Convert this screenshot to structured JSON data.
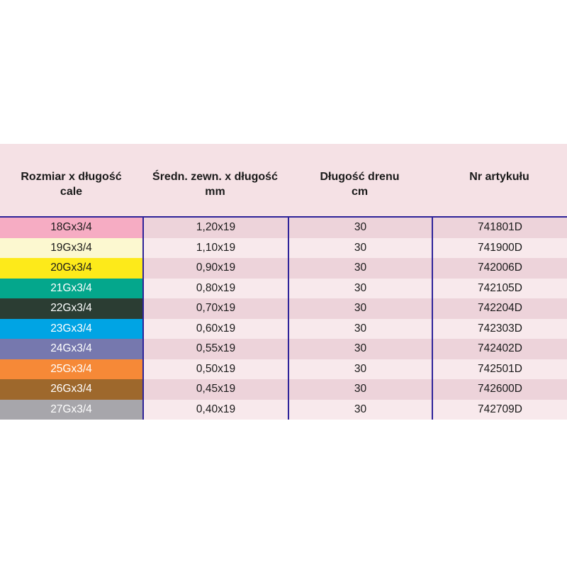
{
  "colors": {
    "header_bg": "#F5E1E5",
    "border": "#2E2399",
    "row_bg_odd": "#EDD3DA",
    "row_bg_even": "#F8E9EC"
  },
  "table": {
    "headers": [
      {
        "line1": "Rozmiar x długość",
        "line2": "cale"
      },
      {
        "line1": "Średn. zewn. x długość",
        "line2": "mm"
      },
      {
        "line1": "Długość drenu",
        "line2": "cm"
      },
      {
        "line1": "Nr artykułu",
        "line2": ""
      }
    ],
    "rows": [
      {
        "size": "18Gx3/4",
        "diameter": "1,20x19",
        "drain_length": "30",
        "article": "741801D",
        "color": "#F6ACC3",
        "text_color": "#1a1a1a"
      },
      {
        "size": "19Gx3/4",
        "diameter": "1,10x19",
        "drain_length": "30",
        "article": "741900D",
        "color": "#FCF8D0",
        "text_color": "#1a1a1a"
      },
      {
        "size": "20Gx3/4",
        "diameter": "0,90x19",
        "drain_length": "30",
        "article": "742006D",
        "color": "#FDEA1A",
        "text_color": "#1a1a1a"
      },
      {
        "size": "21Gx3/4",
        "diameter": "0,80x19",
        "drain_length": "30",
        "article": "742105D",
        "color": "#04A78C",
        "text_color": "#ffffff"
      },
      {
        "size": "22Gx3/4",
        "diameter": "0,70x19",
        "drain_length": "30",
        "article": "742204D",
        "color": "#2B3D33",
        "text_color": "#ffffff"
      },
      {
        "size": "23Gx3/4",
        "diameter": "0,60x19",
        "drain_length": "30",
        "article": "742303D",
        "color": "#00A4E4",
        "text_color": "#ffffff"
      },
      {
        "size": "24Gx3/4",
        "diameter": "0,55x19",
        "drain_length": "30",
        "article": "742402D",
        "color": "#7678AE",
        "text_color": "#ffffff"
      },
      {
        "size": "25Gx3/4",
        "diameter": "0,50x19",
        "drain_length": "30",
        "article": "742501D",
        "color": "#F68937",
        "text_color": "#ffffff"
      },
      {
        "size": "26Gx3/4",
        "diameter": "0,45x19",
        "drain_length": "30",
        "article": "742600D",
        "color": "#9E682C",
        "text_color": "#ffffff"
      },
      {
        "size": "27Gx3/4",
        "diameter": "0,40x19",
        "drain_length": "30",
        "article": "742709D",
        "color": "#A7A6AB",
        "text_color": "#ffffff"
      }
    ]
  }
}
